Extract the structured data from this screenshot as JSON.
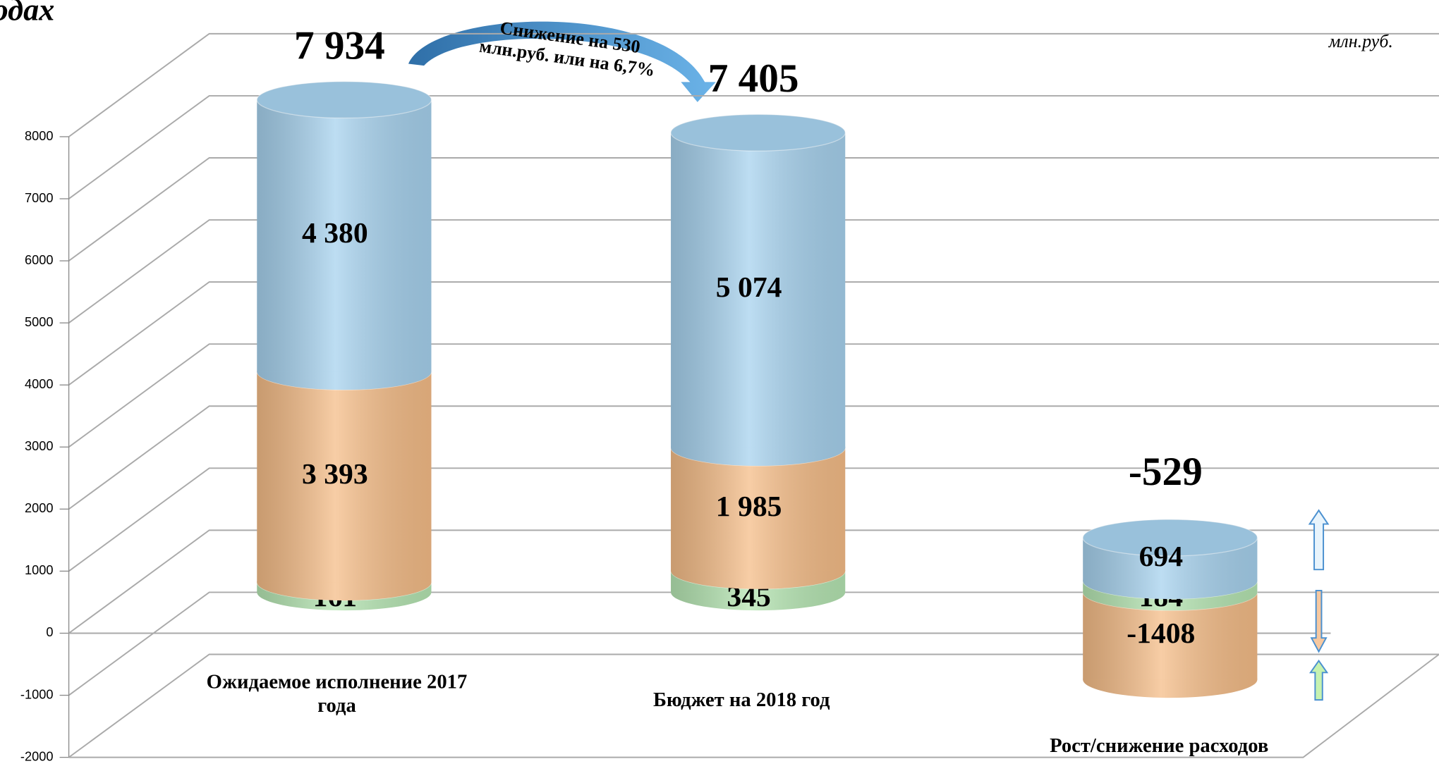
{
  "chart_data": {
    "type": "bar3d-stacked",
    "title": "одах",
    "unit": "млн.руб.",
    "annotation": "Снижение на 530 млн.руб. или на 6,7%",
    "categories": [
      "Ожидаемое исполнение 2017 года",
      "Бюджет на 2018 год",
      "Рост/снижение расходов"
    ],
    "series": [
      {
        "color": "#b6e6b3",
        "values": [
          161,
          345,
          184
        ],
        "value_labels": [
          "161",
          "345",
          "184"
        ]
      },
      {
        "color": "#f5bd88",
        "values": [
          3393,
          1985,
          -1408
        ],
        "value_labels": [
          "3 393",
          "1 985",
          "-1408"
        ]
      },
      {
        "color": "#a7d2ee",
        "values": [
          4380,
          5074,
          694
        ],
        "value_labels": [
          "4 380",
          "5 074",
          "694"
        ]
      }
    ],
    "totals": [
      7934,
      7405,
      -529
    ],
    "total_labels": [
      "7 934",
      "7 405",
      "-529"
    ],
    "ylim": [
      -2000,
      8000
    ],
    "yticks": [
      -2000,
      -1000,
      0,
      1000,
      2000,
      3000,
      4000,
      5000,
      6000,
      7000,
      8000
    ],
    "grid": true
  }
}
